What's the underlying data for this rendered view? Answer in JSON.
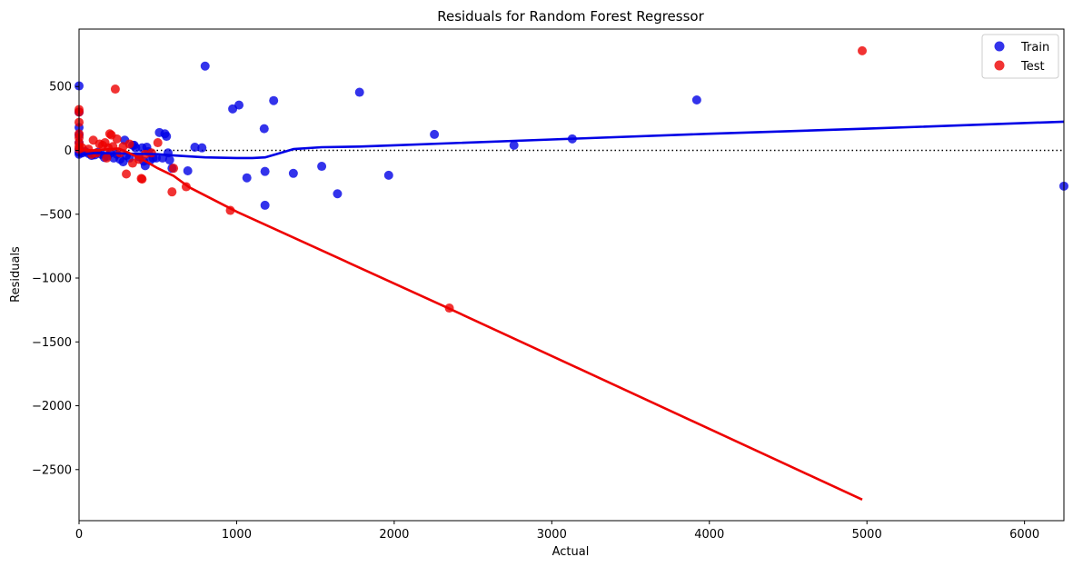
{
  "chart_data": {
    "type": "scatter",
    "title": "Residuals for Random Forest Regressor",
    "xlabel": "Actual",
    "ylabel": "Residuals",
    "xlim": [
      0,
      6250
    ],
    "ylim": [
      -2900,
      950
    ],
    "xticks": [
      0,
      1000,
      2000,
      3000,
      4000,
      5000,
      6000
    ],
    "xtick_labels": [
      "0",
      "1000",
      "2000",
      "3000",
      "4000",
      "5000",
      "6000"
    ],
    "yticks": [
      500,
      0,
      -500,
      -1000,
      -1500,
      -2000,
      -2500
    ],
    "ytick_labels": [
      "500",
      "0",
      "−500",
      "−1000",
      "−1500",
      "−2000",
      "−2500"
    ],
    "grid": false,
    "legend_position": "top-right",
    "reference_line": {
      "y": 0,
      "style": "dotted",
      "color": "#000000"
    },
    "colors": {
      "train": "#0000e6",
      "test": "#ee0000"
    },
    "series": [
      {
        "name": "Train",
        "color": "#0000e6",
        "points": [
          [
            0,
            505
          ],
          [
            0,
            300
          ],
          [
            0,
            180
          ],
          [
            0,
            120
          ],
          [
            0,
            60
          ],
          [
            0,
            10
          ],
          [
            0,
            -15
          ],
          [
            0,
            -30
          ],
          [
            20,
            -20
          ],
          [
            40,
            -10
          ],
          [
            60,
            -25
          ],
          [
            80,
            -40
          ],
          [
            100,
            -35
          ],
          [
            120,
            -15
          ],
          [
            140,
            -30
          ],
          [
            160,
            -55
          ],
          [
            180,
            -45
          ],
          [
            200,
            -20
          ],
          [
            220,
            -60
          ],
          [
            240,
            -30
          ],
          [
            260,
            -70
          ],
          [
            280,
            -90
          ],
          [
            290,
            80
          ],
          [
            300,
            -40
          ],
          [
            320,
            -60
          ],
          [
            340,
            40
          ],
          [
            350,
            40
          ],
          [
            360,
            20
          ],
          [
            380,
            -50
          ],
          [
            400,
            20
          ],
          [
            410,
            -85
          ],
          [
            420,
            -120
          ],
          [
            430,
            25
          ],
          [
            440,
            -10
          ],
          [
            450,
            -80
          ],
          [
            470,
            -60
          ],
          [
            490,
            -60
          ],
          [
            510,
            140
          ],
          [
            530,
            -60
          ],
          [
            545,
            130
          ],
          [
            555,
            110
          ],
          [
            565,
            -20
          ],
          [
            575,
            -75
          ],
          [
            590,
            -140
          ],
          [
            690,
            -160
          ],
          [
            735,
            25
          ],
          [
            780,
            20
          ],
          [
            800,
            660
          ],
          [
            975,
            325
          ],
          [
            1015,
            355
          ],
          [
            1065,
            -215
          ],
          [
            1175,
            170
          ],
          [
            1180,
            -165
          ],
          [
            1180,
            -430
          ],
          [
            1235,
            390
          ],
          [
            1360,
            -180
          ],
          [
            1540,
            -125
          ],
          [
            1640,
            -340
          ],
          [
            1780,
            455
          ],
          [
            1965,
            -195
          ],
          [
            2255,
            125
          ],
          [
            2760,
            40
          ],
          [
            3130,
            90
          ],
          [
            3920,
            395
          ],
          [
            6250,
            -280
          ]
        ]
      },
      {
        "name": "Test",
        "color": "#ee0000",
        "points": [
          [
            0,
            320
          ],
          [
            0,
            300
          ],
          [
            0,
            220
          ],
          [
            0,
            130
          ],
          [
            0,
            100
          ],
          [
            0,
            60
          ],
          [
            0,
            30
          ],
          [
            0,
            10
          ],
          [
            20,
            20
          ],
          [
            60,
            10
          ],
          [
            80,
            -30
          ],
          [
            90,
            80
          ],
          [
            110,
            -20
          ],
          [
            130,
            50
          ],
          [
            150,
            40
          ],
          [
            165,
            60
          ],
          [
            175,
            -60
          ],
          [
            185,
            20
          ],
          [
            195,
            130
          ],
          [
            205,
            120
          ],
          [
            215,
            30
          ],
          [
            230,
            480
          ],
          [
            240,
            90
          ],
          [
            260,
            -20
          ],
          [
            280,
            30
          ],
          [
            300,
            -185
          ],
          [
            320,
            50
          ],
          [
            340,
            -100
          ],
          [
            380,
            -70
          ],
          [
            395,
            -220
          ],
          [
            400,
            -225
          ],
          [
            420,
            -30
          ],
          [
            460,
            -20
          ],
          [
            500,
            60
          ],
          [
            590,
            -325
          ],
          [
            600,
            -140
          ],
          [
            680,
            -285
          ],
          [
            960,
            -470
          ],
          [
            2350,
            -1235
          ],
          [
            4970,
            780
          ]
        ]
      }
    ],
    "fit_lines": [
      {
        "name": "Train fit",
        "color": "#0000e6",
        "points": [
          [
            0,
            -35
          ],
          [
            100,
            -20
          ],
          [
            300,
            -25
          ],
          [
            500,
            -30
          ],
          [
            600,
            -40
          ],
          [
            800,
            -55
          ],
          [
            1000,
            -60
          ],
          [
            1100,
            -60
          ],
          [
            1180,
            -55
          ],
          [
            1250,
            -30
          ],
          [
            1360,
            10
          ],
          [
            1540,
            25
          ],
          [
            1780,
            30
          ],
          [
            2000,
            40
          ],
          [
            3000,
            85
          ],
          [
            4000,
            130
          ],
          [
            5000,
            170
          ],
          [
            6250,
            225
          ]
        ]
      },
      {
        "name": "Test fit",
        "color": "#ee0000",
        "points": [
          [
            0,
            5
          ],
          [
            100,
            0
          ],
          [
            200,
            10
          ],
          [
            250,
            15
          ],
          [
            300,
            -10
          ],
          [
            400,
            -70
          ],
          [
            500,
            -140
          ],
          [
            600,
            -200
          ],
          [
            700,
            -290
          ],
          [
            1000,
            -480
          ],
          [
            2350,
            -1240
          ],
          [
            4970,
            -2735
          ]
        ]
      }
    ]
  }
}
